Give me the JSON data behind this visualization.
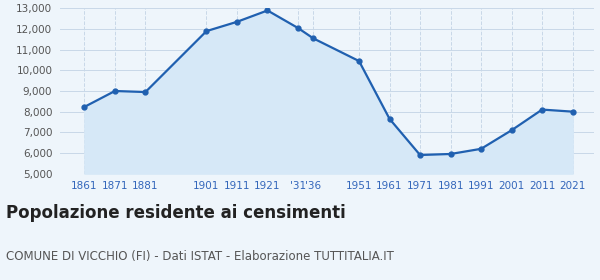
{
  "years": [
    1861,
    1871,
    1881,
    1901,
    1911,
    1921,
    1931,
    1936,
    1951,
    1961,
    1971,
    1981,
    1991,
    2001,
    2011,
    2021
  ],
  "labels": [
    "1861",
    "1871",
    "1881",
    "1901",
    "1911",
    "1921",
    "'31",
    "'36",
    "1951",
    "1961",
    "1971",
    "1981",
    "1991",
    "2001",
    "2011",
    "2021"
  ],
  "values": [
    8230,
    9000,
    8950,
    11900,
    12350,
    12900,
    12050,
    11550,
    10450,
    7650,
    5900,
    5950,
    6200,
    7100,
    8100,
    8000
  ],
  "line_color": "#2060b0",
  "fill_color": "#d6e8f7",
  "marker_color": "#2060b0",
  "bg_color": "#eef5fb",
  "grid_color_v": "#c8d8e8",
  "grid_color_h": "#c8d8e8",
  "title": "Popolazione residente ai censimenti",
  "subtitle": "COMUNE DI VICCHIO (FI) - Dati ISTAT - Elaborazione TUTTITALIA.IT",
  "ylim": [
    5000,
    13000
  ],
  "yticks": [
    5000,
    6000,
    7000,
    8000,
    9000,
    10000,
    11000,
    12000,
    13000
  ],
  "title_fontsize": 12,
  "subtitle_fontsize": 8.5,
  "tick_fontsize": 7.5,
  "label_color": "#3366bb",
  "title_color": "#222222",
  "subtitle_color": "#555555"
}
